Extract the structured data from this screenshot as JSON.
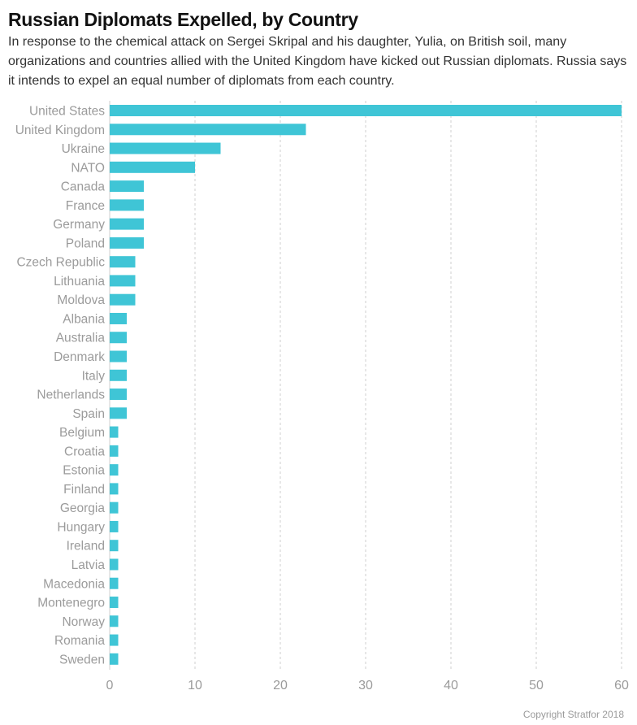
{
  "chart_data": {
    "type": "bar",
    "orientation": "horizontal",
    "title": "Russian Diplomats Expelled, by Country",
    "subtitle": "In response to the chemical attack on Sergei Skripal and his daughter, Yulia, on British soil, many organizations and countries allied with the United Kingdom have kicked out Russian diplomats. Russia says it intends to expel an equal number of diplomats from each country.",
    "categories": [
      "United States",
      "United Kingdom",
      "Ukraine",
      "NATO",
      "Canada",
      "France",
      "Germany",
      "Poland",
      "Czech Republic",
      "Lithuania",
      "Moldova",
      "Albania",
      "Australia",
      "Denmark",
      "Italy",
      "Netherlands",
      "Spain",
      "Belgium",
      "Croatia",
      "Estonia",
      "Finland",
      "Georgia",
      "Hungary",
      "Ireland",
      "Latvia",
      "Macedonia",
      "Montenegro",
      "Norway",
      "Romania",
      "Sweden"
    ],
    "values": [
      60,
      23,
      13,
      10,
      4,
      4,
      4,
      4,
      3,
      3,
      3,
      2,
      2,
      2,
      2,
      2,
      2,
      1,
      1,
      1,
      1,
      1,
      1,
      1,
      1,
      1,
      1,
      1,
      1,
      1
    ],
    "xlim": [
      0,
      60
    ],
    "xticks": [
      0,
      10,
      20,
      30,
      40,
      50,
      60
    ],
    "xlabel": "",
    "ylabel": "",
    "grid": "vertical dashed",
    "bar_color": "#3fc5d6",
    "grid_color": "#cfcfcf",
    "label_color": "#9b9b9b"
  },
  "footer": {
    "copyright": "Copyright Stratfor 2018"
  }
}
